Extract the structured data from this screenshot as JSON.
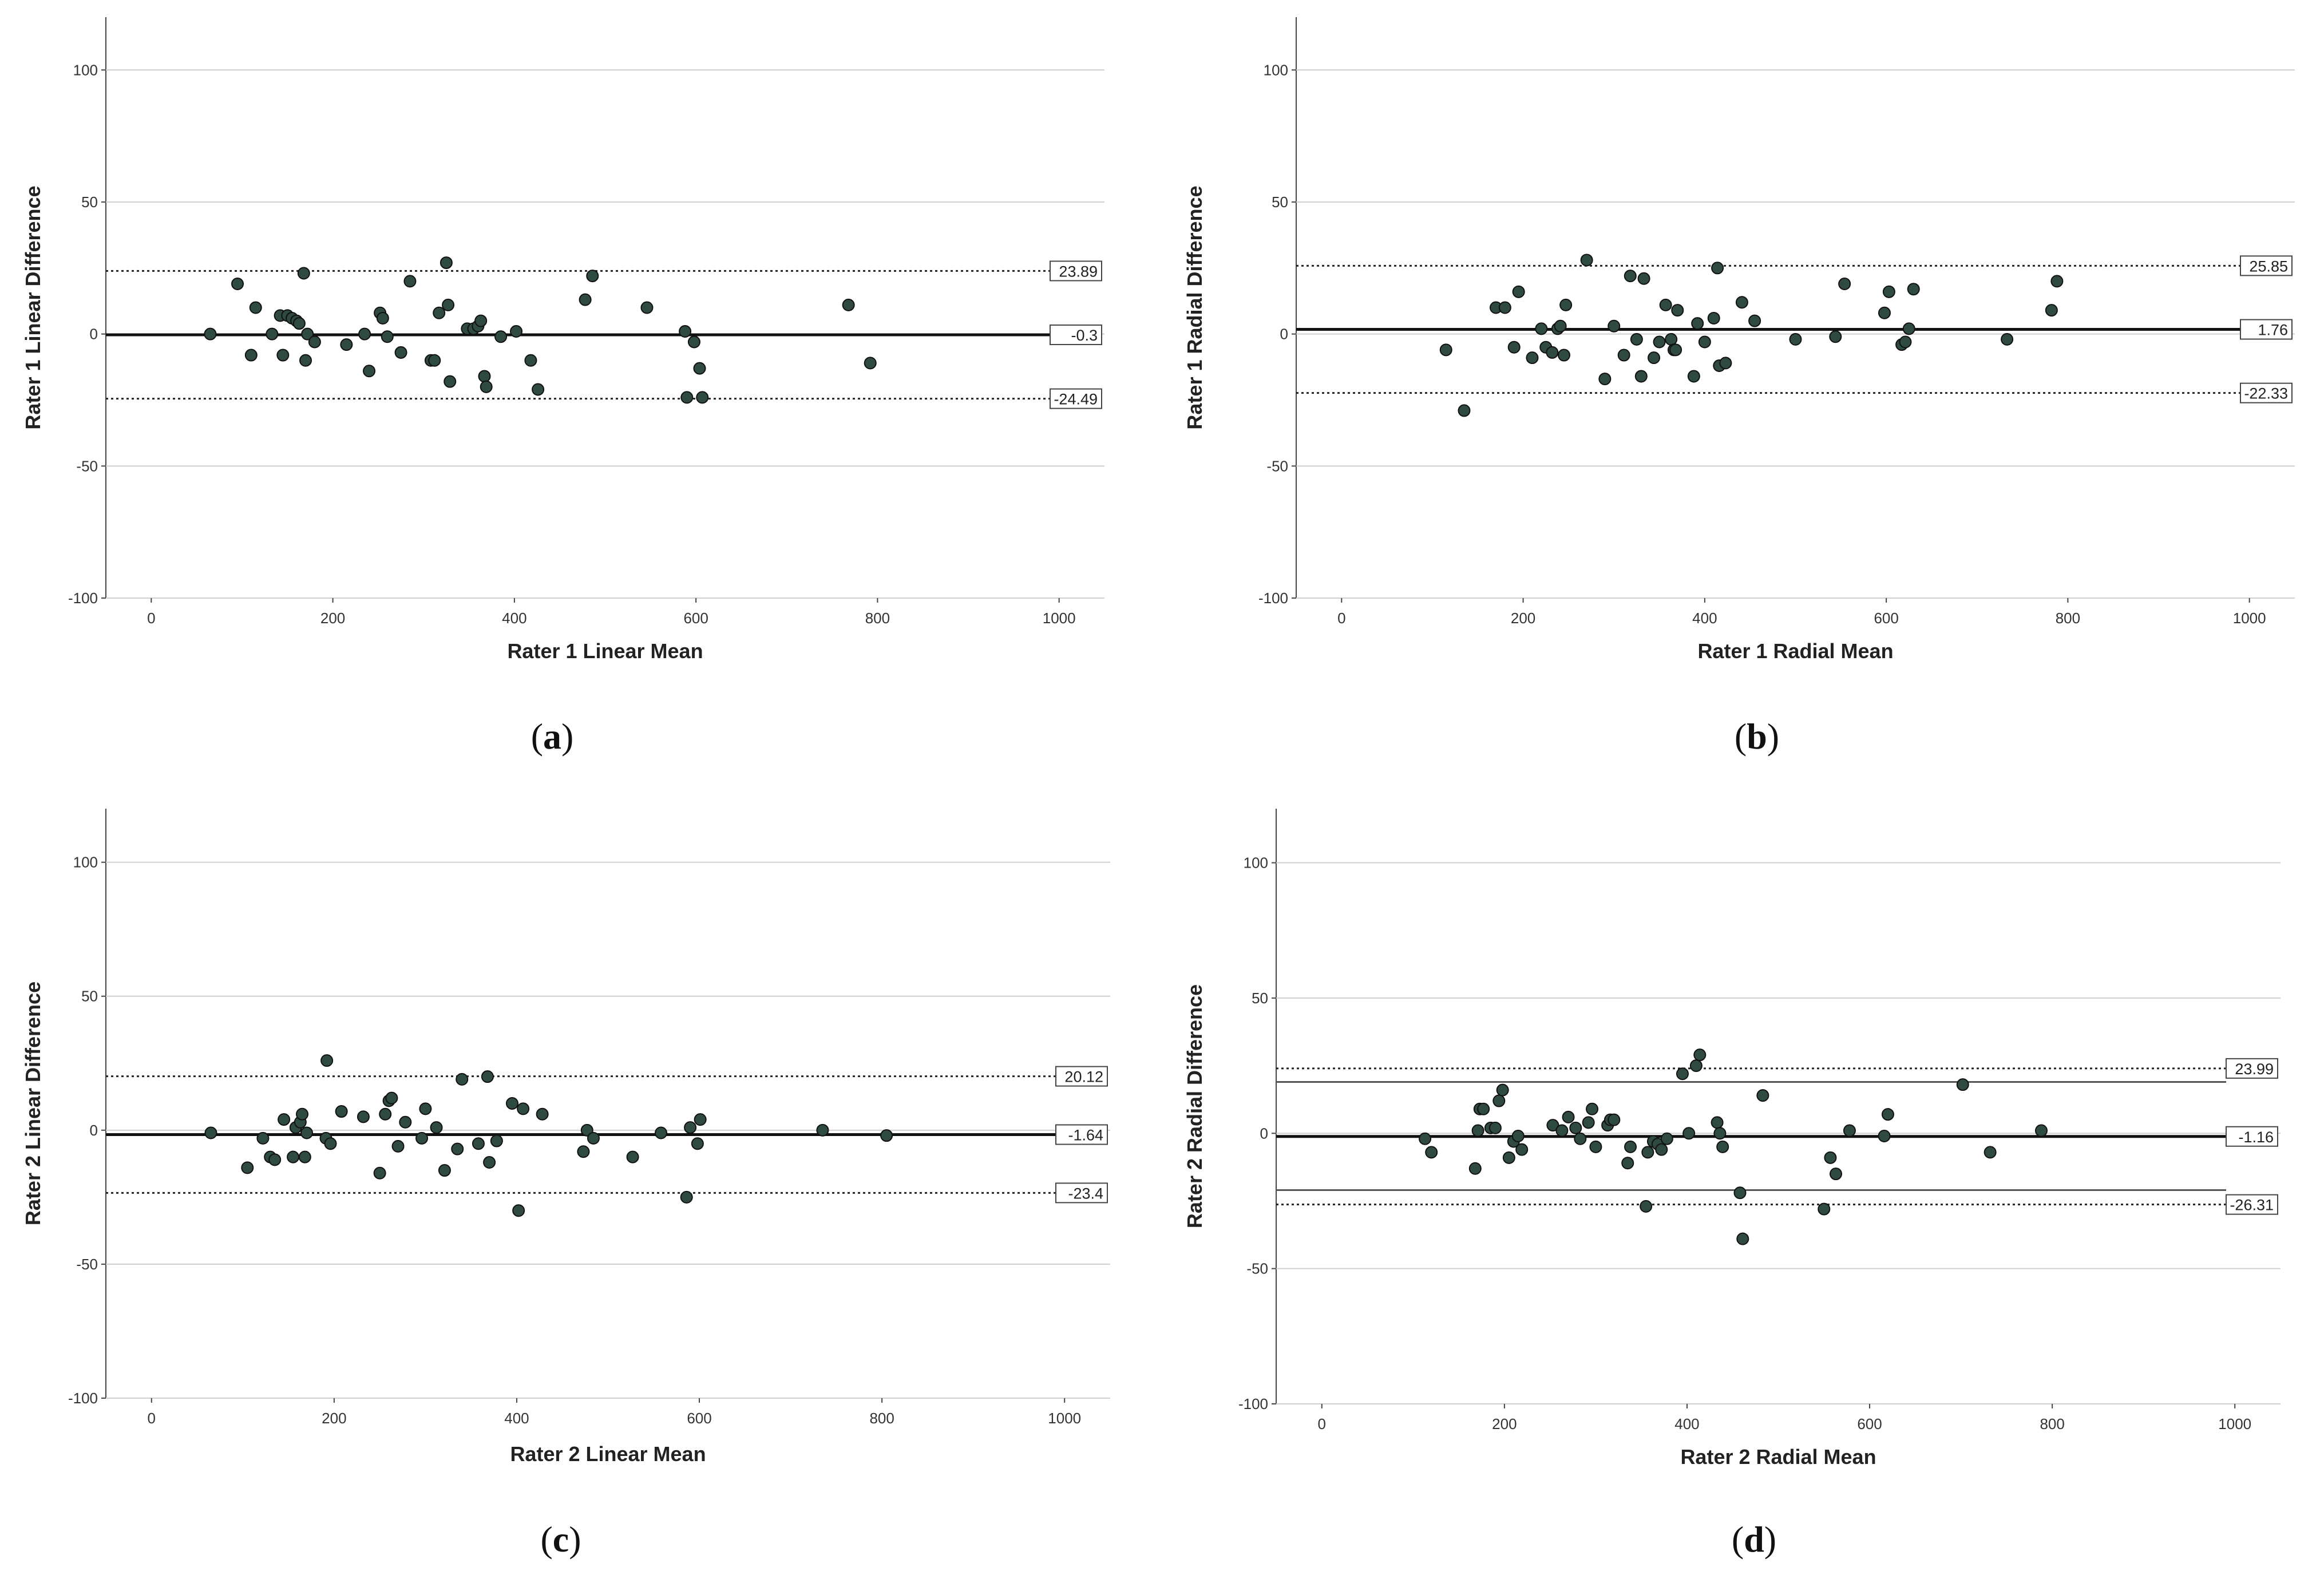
{
  "chart_data": [
    {
      "id": "a",
      "type": "scatter",
      "caption": "a",
      "xlabel": "Rater 1 Linear Mean",
      "ylabel": "Rater 1 Linear Difference",
      "xlim": [
        -50,
        1050
      ],
      "ylim": [
        -100,
        120
      ],
      "xticks": [
        0,
        200,
        400,
        600,
        800,
        1000
      ],
      "yticks": [
        -100,
        -50,
        0,
        50,
        100
      ],
      "grid": true,
      "mean_line": {
        "value": -0.3,
        "label": "-0.3"
      },
      "loa_lines": [
        {
          "value": 23.89,
          "label": "23.89"
        },
        {
          "value": -24.49,
          "label": "-24.49"
        }
      ],
      "extra_lines": [],
      "points": [
        [
          65,
          0
        ],
        [
          95,
          19
        ],
        [
          110,
          -8
        ],
        [
          115,
          10
        ],
        [
          133,
          0
        ],
        [
          142,
          7
        ],
        [
          145,
          -8
        ],
        [
          150,
          7
        ],
        [
          155,
          6
        ],
        [
          160,
          5
        ],
        [
          163,
          4
        ],
        [
          168,
          23
        ],
        [
          170,
          -10
        ],
        [
          172,
          0
        ],
        [
          180,
          -3
        ],
        [
          215,
          -4
        ],
        [
          235,
          0
        ],
        [
          240,
          -14
        ],
        [
          252,
          8
        ],
        [
          255,
          6
        ],
        [
          260,
          -1
        ],
        [
          275,
          -7
        ],
        [
          285,
          20
        ],
        [
          308,
          -10
        ],
        [
          312,
          -10
        ],
        [
          317,
          8
        ],
        [
          325,
          27
        ],
        [
          327,
          11
        ],
        [
          329,
          -18
        ],
        [
          348,
          2
        ],
        [
          355,
          2
        ],
        [
          360,
          3
        ],
        [
          363,
          5
        ],
        [
          367,
          -16
        ],
        [
          369,
          -20
        ],
        [
          385,
          -1
        ],
        [
          402,
          1
        ],
        [
          418,
          -10
        ],
        [
          426,
          -21
        ],
        [
          478,
          13
        ],
        [
          486,
          22
        ],
        [
          546,
          10
        ],
        [
          588,
          1
        ],
        [
          590,
          -24
        ],
        [
          598,
          -3
        ],
        [
          604,
          -13
        ],
        [
          607,
          -24
        ],
        [
          768,
          11
        ],
        [
          792,
          -11
        ]
      ]
    },
    {
      "id": "b",
      "type": "scatter",
      "caption": "b",
      "xlabel": "Rater 1 Radial Mean",
      "ylabel": "Rater 1 Radial Difference",
      "xlim": [
        -50,
        1050
      ],
      "ylim": [
        -100,
        120
      ],
      "xticks": [
        0,
        200,
        400,
        600,
        800,
        1000
      ],
      "yticks": [
        -100,
        -50,
        0,
        50,
        100
      ],
      "grid": true,
      "mean_line": {
        "value": 1.76,
        "label": "1.76"
      },
      "loa_lines": [
        {
          "value": 25.85,
          "label": "25.85"
        },
        {
          "value": -22.33,
          "label": "-22.33"
        }
      ],
      "extra_lines": [],
      "points": [
        [
          115,
          -6
        ],
        [
          135,
          -29
        ],
        [
          170,
          10
        ],
        [
          180,
          10
        ],
        [
          190,
          -5
        ],
        [
          195,
          16
        ],
        [
          210,
          -9
        ],
        [
          220,
          2
        ],
        [
          225,
          -5
        ],
        [
          232,
          -7
        ],
        [
          238,
          2
        ],
        [
          241,
          3
        ],
        [
          245,
          -8
        ],
        [
          247,
          11
        ],
        [
          270,
          28
        ],
        [
          290,
          -17
        ],
        [
          300,
          3
        ],
        [
          311,
          -8
        ],
        [
          318,
          22
        ],
        [
          325,
          -2
        ],
        [
          330,
          -16
        ],
        [
          333,
          21
        ],
        [
          344,
          -9
        ],
        [
          350,
          -3
        ],
        [
          357,
          11
        ],
        [
          363,
          -2
        ],
        [
          366,
          -6
        ],
        [
          368,
          -6
        ],
        [
          370,
          9
        ],
        [
          388,
          -16
        ],
        [
          392,
          4
        ],
        [
          400,
          -3
        ],
        [
          410,
          6
        ],
        [
          414,
          25
        ],
        [
          416,
          -12
        ],
        [
          423,
          -11
        ],
        [
          441,
          12
        ],
        [
          455,
          5
        ],
        [
          500,
          -2
        ],
        [
          544,
          -1
        ],
        [
          554,
          19
        ],
        [
          598,
          8
        ],
        [
          603,
          16
        ],
        [
          617,
          -4
        ],
        [
          621,
          -3
        ],
        [
          625,
          2
        ],
        [
          630,
          17
        ],
        [
          733,
          -2
        ],
        [
          782,
          9
        ],
        [
          788,
          20
        ]
      ]
    },
    {
      "id": "c",
      "type": "scatter",
      "caption": "c",
      "xlabel": "Rater 2 Linear Mean",
      "ylabel": "Rater 2 Linear Difference",
      "xlim": [
        -50,
        1050
      ],
      "ylim": [
        -100,
        120
      ],
      "xticks": [
        0,
        200,
        400,
        600,
        800,
        1000
      ],
      "yticks": [
        -100,
        -50,
        0,
        50,
        100
      ],
      "grid": true,
      "mean_line": {
        "value": -1.64,
        "label": "-1.64"
      },
      "loa_lines": [
        {
          "value": 20.12,
          "label": "20.12"
        },
        {
          "value": -23.4,
          "label": "-23.4"
        }
      ],
      "extra_lines": [],
      "points": [
        [
          65,
          -1
        ],
        [
          105,
          -14
        ],
        [
          122,
          -3
        ],
        [
          130,
          -10
        ],
        [
          135,
          -11
        ],
        [
          145,
          4
        ],
        [
          155,
          -10
        ],
        [
          158,
          1
        ],
        [
          163,
          3
        ],
        [
          165,
          6
        ],
        [
          168,
          -10
        ],
        [
          170,
          -1
        ],
        [
          191,
          -3
        ],
        [
          192,
          26
        ],
        [
          196,
          -5
        ],
        [
          208,
          7
        ],
        [
          232,
          5
        ],
        [
          250,
          -16
        ],
        [
          256,
          6
        ],
        [
          260,
          11
        ],
        [
          263,
          12
        ],
        [
          270,
          -6
        ],
        [
          278,
          3
        ],
        [
          296,
          -3
        ],
        [
          300,
          8
        ],
        [
          312,
          1
        ],
        [
          321,
          -15
        ],
        [
          335,
          -7
        ],
        [
          340,
          19
        ],
        [
          358,
          -5
        ],
        [
          368,
          20
        ],
        [
          370,
          -12
        ],
        [
          378,
          -4
        ],
        [
          395,
          10
        ],
        [
          402,
          -30
        ],
        [
          407,
          8
        ],
        [
          428,
          6
        ],
        [
          473,
          -8
        ],
        [
          477,
          0
        ],
        [
          484,
          -3
        ],
        [
          527,
          -10
        ],
        [
          558,
          -1
        ],
        [
          586,
          -25
        ],
        [
          590,
          1
        ],
        [
          598,
          -5
        ],
        [
          601,
          4
        ],
        [
          735,
          0
        ],
        [
          805,
          -2
        ]
      ]
    },
    {
      "id": "d",
      "type": "scatter",
      "caption": "d",
      "xlabel": "Rater 2 Radial Mean",
      "ylabel": "Rater 2 Radial Difference",
      "xlim": [
        -50,
        1050
      ],
      "ylim": [
        -100,
        120
      ],
      "xticks": [
        0,
        200,
        400,
        600,
        800,
        1000
      ],
      "yticks": [
        -100,
        -50,
        0,
        50,
        100
      ],
      "grid": true,
      "mean_line": {
        "value": -1.16,
        "label": "-1.16"
      },
      "loa_lines": [
        {
          "value": 23.99,
          "label": "23.99"
        },
        {
          "value": -26.31,
          "label": "-26.31"
        }
      ],
      "extra_lines": [
        19,
        -21
      ],
      "points": [
        [
          113,
          -2
        ],
        [
          120,
          -7
        ],
        [
          168,
          -13
        ],
        [
          171,
          1
        ],
        [
          173,
          9
        ],
        [
          177,
          9
        ],
        [
          185,
          2
        ],
        [
          190,
          2
        ],
        [
          194,
          12
        ],
        [
          198,
          16
        ],
        [
          205,
          -9
        ],
        [
          210,
          -3
        ],
        [
          215,
          -1
        ],
        [
          219,
          -6
        ],
        [
          253,
          3
        ],
        [
          263,
          1
        ],
        [
          270,
          6
        ],
        [
          278,
          2
        ],
        [
          283,
          -2
        ],
        [
          292,
          4
        ],
        [
          296,
          9
        ],
        [
          300,
          -5
        ],
        [
          313,
          3
        ],
        [
          316,
          5
        ],
        [
          320,
          5
        ],
        [
          335,
          -11
        ],
        [
          338,
          -5
        ],
        [
          355,
          -27
        ],
        [
          357,
          -7
        ],
        [
          363,
          -3
        ],
        [
          368,
          -4
        ],
        [
          372,
          -6
        ],
        [
          378,
          -2
        ],
        [
          395,
          22
        ],
        [
          402,
          0
        ],
        [
          410,
          25
        ],
        [
          414,
          29
        ],
        [
          433,
          4
        ],
        [
          436,
          0
        ],
        [
          439,
          -5
        ],
        [
          458,
          -22
        ],
        [
          461,
          -39
        ],
        [
          483,
          14
        ],
        [
          550,
          -28
        ],
        [
          557,
          -9
        ],
        [
          563,
          -15
        ],
        [
          578,
          1
        ],
        [
          616,
          -1
        ],
        [
          620,
          7
        ],
        [
          702,
          18
        ],
        [
          732,
          -7
        ],
        [
          788,
          1
        ]
      ]
    }
  ]
}
